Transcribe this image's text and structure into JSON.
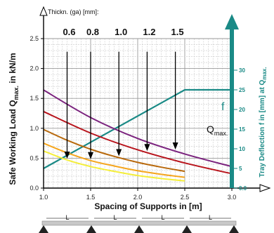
{
  "chart_data": {
    "type": "line",
    "title": "",
    "thickness_header": "Thickn. (ga) [mm]:",
    "thickness_labels": [
      "0.6",
      "0.8",
      "1.0",
      "1.2",
      "1.5"
    ],
    "xlabel": "Spacing of Supports in [m]",
    "ylabel_main": "Safe Working Load Q",
    "ylabel_sub": "max.",
    "ylabel_unit": " in kN/m",
    "y2label_main": "Tray Deflection f in [mm] at Q",
    "y2label_sub": "max.",
    "xlim": [
      1.0,
      3.0
    ],
    "ylim": [
      0.0,
      2.5
    ],
    "y2lim": [
      0,
      30
    ],
    "xticks": [
      "1.0",
      "1.5",
      "2.0",
      "2.5",
      "3.0"
    ],
    "yticks": [
      "0.0",
      "0.5",
      "1.0",
      "1.5",
      "2.0",
      "2.5"
    ],
    "y2ticks": [
      "0.0",
      "5",
      "10",
      "15",
      "20",
      "25",
      "30"
    ],
    "grid": true,
    "series": [
      {
        "name": "0.6",
        "color": "#f4ee3a",
        "x": [
          1.0,
          1.25,
          1.5,
          1.75,
          2.0,
          2.25,
          2.5
        ],
        "y": [
          0.62,
          0.47,
          0.36,
          0.28,
          0.21,
          0.16,
          0.12
        ]
      },
      {
        "name": "0.8",
        "color": "#f5a51c",
        "x": [
          1.0,
          1.25,
          1.5,
          1.75,
          2.0,
          2.25,
          2.5
        ],
        "y": [
          0.75,
          0.59,
          0.46,
          0.37,
          0.29,
          0.23,
          0.18
        ]
      },
      {
        "name": "1.0",
        "color": "#b8690c",
        "x": [
          1.0,
          1.25,
          1.5,
          1.75,
          2.0,
          2.25,
          2.5
        ],
        "y": [
          0.98,
          0.8,
          0.65,
          0.53,
          0.43,
          0.35,
          0.28
        ]
      },
      {
        "name": "1.2",
        "color": "#b8141c",
        "x": [
          1.0,
          1.5,
          2.0,
          2.5,
          3.0
        ],
        "y": [
          1.28,
          0.92,
          0.64,
          0.42,
          0.24
        ]
      },
      {
        "name": "1.5",
        "color": "#7b237e",
        "x": [
          1.0,
          1.5,
          2.0,
          2.5,
          3.0
        ],
        "y": [
          1.64,
          1.18,
          0.83,
          0.57,
          0.36
        ]
      }
    ],
    "deflection": {
      "name": "f",
      "color": "#1a8a86",
      "x": [
        1.0,
        2.5,
        3.0
      ],
      "y2": [
        5,
        25,
        25
      ]
    },
    "qmax_label": "Q",
    "qmax_sub": "max.",
    "f_label": "f",
    "arrow_markers": [
      {
        "thickness": "0.6",
        "x": 1.25,
        "y_top": 2.28
      },
      {
        "thickness": "0.8",
        "x": 1.5,
        "y_top": 2.28
      },
      {
        "thickness": "1.0",
        "x": 1.8,
        "y_top": 2.28
      },
      {
        "thickness": "1.2",
        "x": 2.1,
        "y_top": 2.28
      },
      {
        "thickness": "1.5",
        "x": 2.4,
        "y_top": 2.28
      }
    ],
    "span_label": "L",
    "span_count": 4
  }
}
